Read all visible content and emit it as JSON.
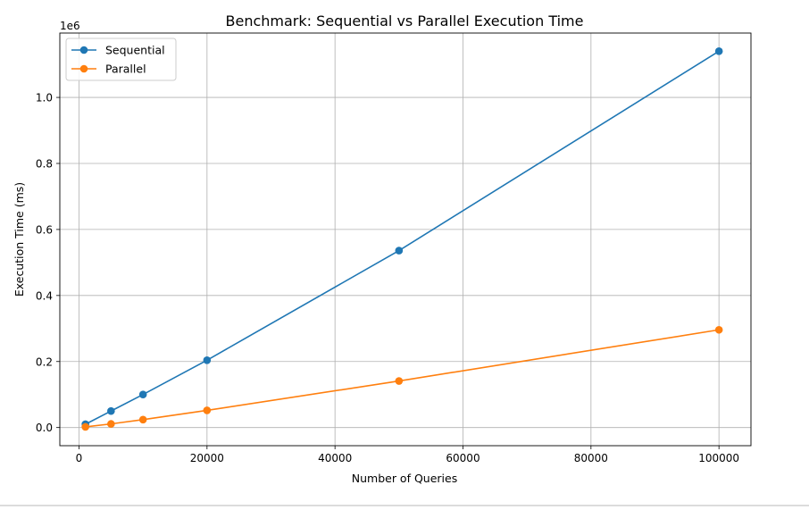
{
  "colors": {
    "sequential": "#1f77b4",
    "parallel": "#ff7f0e",
    "grid": "#b0b0b0",
    "axis": "#000000"
  },
  "chart_data": {
    "type": "line",
    "title": "Benchmark: Sequential vs Parallel Execution Time",
    "xlabel": "Number of Queries",
    "ylabel": "Execution Time (ms)",
    "y_offset_label": "1e6",
    "xlim": [
      -3000,
      105000
    ],
    "ylim": [
      -55000,
      1195000
    ],
    "x_ticks": [
      0,
      20000,
      40000,
      60000,
      80000,
      100000
    ],
    "x_tick_labels": [
      "0",
      "20000",
      "40000",
      "60000",
      "80000",
      "100000"
    ],
    "y_ticks": [
      0,
      200000,
      400000,
      600000,
      800000,
      1000000
    ],
    "y_tick_labels": [
      "0.0",
      "0.2",
      "0.4",
      "0.6",
      "0.8",
      "1.0"
    ],
    "grid": true,
    "legend_position": "top-left",
    "x": [
      1000,
      5000,
      10000,
      20000,
      50000,
      100000
    ],
    "series": [
      {
        "name": "Sequential",
        "color": "#1f77b4",
        "marker": "circle",
        "values": [
          10000,
          50000,
          100000,
          204000,
          536000,
          1140000
        ]
      },
      {
        "name": "Parallel",
        "color": "#ff7f0e",
        "marker": "circle",
        "values": [
          2000,
          11000,
          24000,
          52000,
          141000,
          296000
        ]
      }
    ]
  }
}
